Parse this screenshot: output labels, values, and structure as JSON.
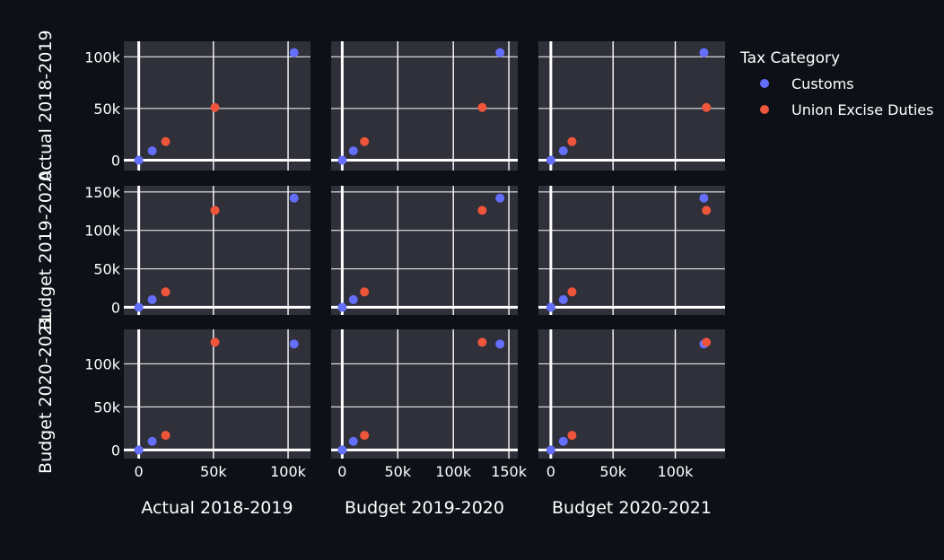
{
  "chart_data": {
    "type": "scatter",
    "chart_kind": "scatter-matrix",
    "dimensions": [
      "Actual 2018-2019",
      "Budget 2019-2020",
      "Budget 2020-2021"
    ],
    "axes": {
      "Actual 2018-2019": {
        "range": [
          -10000,
          115000
        ],
        "ticks": [
          0,
          50000,
          100000
        ],
        "tick_labels": [
          "0",
          "50k",
          "100k"
        ]
      },
      "Budget 2019-2020": {
        "range": [
          -10000,
          158000
        ],
        "ticks": [
          0,
          50000,
          100000,
          150000
        ],
        "tick_labels": [
          "0",
          "50k",
          "100k",
          "150k"
        ]
      },
      "Budget 2020-2021": {
        "range": [
          -10000,
          140000
        ],
        "ticks": [
          0,
          50000,
          100000
        ],
        "tick_labels": [
          "0",
          "50k",
          "100k"
        ]
      }
    },
    "grid": true,
    "legend_title": "Tax Category",
    "legend_placement": "top-right",
    "series": [
      {
        "name": "Customs",
        "color": "#636efa",
        "points": [
          {
            "Actual 2018-2019": 0,
            "Budget 2019-2020": 0,
            "Budget 2020-2021": 0
          },
          {
            "Actual 2018-2019": 9000,
            "Budget 2019-2020": 10000,
            "Budget 2020-2021": 10000
          },
          {
            "Actual 2018-2019": 104000,
            "Budget 2019-2020": 142000,
            "Budget 2020-2021": 123000
          }
        ]
      },
      {
        "name": "Union Excise Duties",
        "color": "#ef553b",
        "points": [
          {
            "Actual 2018-2019": 18000,
            "Budget 2019-2020": 20000,
            "Budget 2020-2021": 17000
          },
          {
            "Actual 2018-2019": 51000,
            "Budget 2019-2020": 126000,
            "Budget 2020-2021": 125000
          }
        ]
      }
    ]
  }
}
